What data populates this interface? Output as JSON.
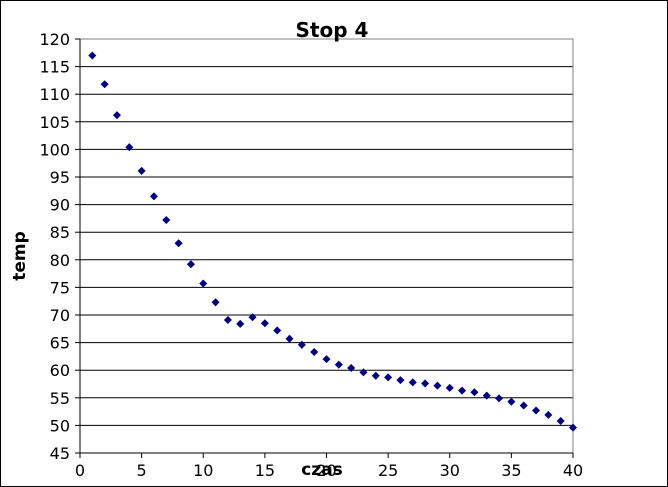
{
  "chart_data": {
    "type": "scatter",
    "title": "Stop 4",
    "xlabel": "czas",
    "ylabel": "temp",
    "xlim": [
      0,
      40
    ],
    "ylim": [
      45,
      120
    ],
    "xticks": [
      "0",
      "5",
      "10",
      "15",
      "20",
      "25",
      "30",
      "35",
      "40"
    ],
    "yticks": [
      "45",
      "50",
      "55",
      "60",
      "65",
      "70",
      "75",
      "80",
      "85",
      "90",
      "95",
      "100",
      "105",
      "110",
      "115",
      "120"
    ],
    "grid": "horizontal",
    "legend": "none",
    "marker": "diamond",
    "marker_color": "#000080",
    "series": [
      {
        "x": [
          1,
          2,
          3,
          4,
          5,
          6,
          7,
          8,
          9,
          10,
          11,
          12,
          13,
          14,
          15,
          16,
          17,
          18,
          19,
          20,
          21,
          22,
          23,
          24,
          25,
          26,
          27,
          28,
          29,
          30,
          31,
          32,
          33,
          34,
          35,
          36,
          37,
          38,
          39,
          40
        ],
        "y": [
          117,
          111.8,
          106.2,
          100.4,
          96.1,
          91.5,
          87.2,
          83.0,
          79.2,
          75.7,
          72.3,
          69.1,
          68.4,
          69.6,
          68.5,
          67.2,
          65.7,
          64.6,
          63.3,
          62.0,
          61.0,
          60.4,
          59.6,
          59.0,
          58.7,
          58.2,
          57.8,
          57.6,
          57.2,
          56.8,
          56.3,
          56.0,
          55.4,
          54.9,
          54.3,
          53.6,
          52.7,
          51.9,
          50.8,
          49.6
        ]
      }
    ]
  }
}
